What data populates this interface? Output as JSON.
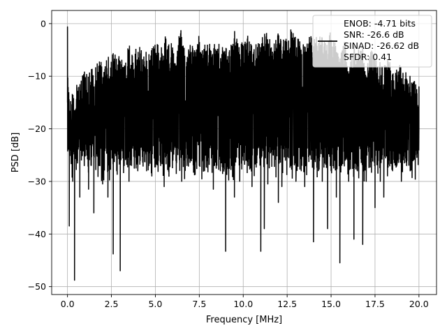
{
  "chart_data": {
    "type": "line",
    "xlabel": "Frequency [MHz]",
    "ylabel": "PSD [dB]",
    "xlim": [
      -0.9,
      21.0
    ],
    "ylim": [
      -51.5,
      2.5
    ],
    "x_ticks": [
      0.0,
      2.5,
      5.0,
      7.5,
      10.0,
      12.5,
      15.0,
      17.5,
      20.0
    ],
    "x_tick_labels": [
      "0.0",
      "2.5",
      "5.0",
      "7.5",
      "10.0",
      "12.5",
      "15.0",
      "17.5",
      "20.0"
    ],
    "y_ticks": [
      0,
      -10,
      -20,
      -30,
      -40,
      -50
    ],
    "y_tick_labels": [
      "0",
      "−10",
      "−20",
      "−30",
      "−40",
      "−50"
    ],
    "grid": true,
    "legend_position": "top-right",
    "series": [
      {
        "name": "ENOB: -4.71 bits\nSNR: -26.6 dB\nSINAD: -26.62 dB\nSFDR: 0.41",
        "legend_lines": [
          "ENOB: -4.71 bits",
          "SNR: -26.6 dB",
          "SINAD: -26.62 dB",
          "SFDR: 0.41"
        ],
        "color": "#000000",
        "x": [
          0.0,
          0.1,
          0.2,
          0.3,
          0.4,
          0.5,
          0.7,
          1.0,
          1.2,
          1.5,
          1.8,
          2.0,
          2.3,
          2.5,
          2.6,
          2.8,
          3.0,
          3.2,
          3.5,
          3.8,
          4.0,
          4.3,
          4.5,
          4.8,
          5.0,
          5.3,
          5.5,
          5.8,
          6.0,
          6.2,
          6.5,
          6.8,
          7.0,
          7.3,
          7.5,
          7.8,
          8.0,
          8.3,
          8.5,
          8.7,
          9.0,
          9.2,
          9.5,
          9.8,
          10.0,
          10.3,
          10.5,
          10.8,
          11.0,
          11.2,
          11.4,
          11.7,
          12.0,
          12.2,
          12.4,
          12.7,
          13.0,
          13.3,
          13.5,
          13.8,
          14.0,
          14.3,
          14.5,
          14.8,
          15.0,
          15.3,
          15.5,
          15.8,
          16.0,
          16.3,
          16.5,
          16.8,
          17.0,
          17.3,
          17.5,
          17.8,
          18.0,
          18.3,
          18.5,
          18.8,
          19.0,
          19.3,
          19.5,
          19.8,
          20.0
        ],
        "y": [
          -0.6,
          -38.5,
          -22.0,
          -30.0,
          -48.8,
          -18.0,
          -33.0,
          -25.0,
          -31.5,
          -36.0,
          -27.0,
          -30.5,
          -33.0,
          -24.0,
          -43.8,
          -28.0,
          -47.0,
          -26.0,
          -30.0,
          -27.5,
          -28.0,
          -26.0,
          -28.0,
          -29.0,
          -25.0,
          -27.0,
          -31.0,
          -24.0,
          -26.0,
          -25.0,
          -30.0,
          -27.0,
          -24.0,
          -26.0,
          -27.0,
          -28.0,
          -25.0,
          -31.5,
          -26.0,
          -28.0,
          -43.3,
          -27.0,
          -33.0,
          -30.0,
          -26.0,
          -27.0,
          -31.0,
          -25.0,
          -43.3,
          -39.0,
          -30.5,
          -25.0,
          -34.0,
          -31.0,
          -26.0,
          -27.0,
          -30.0,
          -28.0,
          -31.0,
          -25.0,
          -41.5,
          -27.0,
          -30.0,
          -39.0,
          -28.0,
          -33.0,
          -45.5,
          -26.0,
          -30.0,
          -41.0,
          -28.0,
          -42.0,
          -30.0,
          -26.0,
          -35.0,
          -30.0,
          -33.0,
          -26.0,
          -28.0,
          -26.0,
          -30.0,
          -27.0,
          -28.0,
          -25.0,
          -12.0
        ],
        "upper_envelope": [
          -5.0,
          -15.0,
          -14.0,
          -13.0,
          -13.0,
          -11.0,
          -10.0,
          -9.0,
          -8.0,
          -8.5,
          -7.0,
          -7.5,
          -6.0,
          -7.0,
          -5.0,
          -6.0,
          -6.0,
          -7.0,
          -4.0,
          -6.0,
          -3.0,
          -6.0,
          -4.0,
          -4.0,
          -3.0,
          -5.0,
          -2.0,
          -4.0,
          -3.0,
          -4.0,
          -0.5,
          -4.0,
          -3.0,
          -4.0,
          -2.0,
          -4.0,
          -3.0,
          -4.0,
          -2.0,
          -5.0,
          -3.0,
          -5.0,
          -1.0,
          -4.0,
          -3.0,
          -2.0,
          -2.5,
          -4.0,
          -3.0,
          -0.5,
          -2.0,
          -4.0,
          -1.0,
          -3.0,
          -2.0,
          -1.0,
          -2.0,
          -3.0,
          -4.0,
          -2.0,
          -3.0,
          -2.0,
          -2.5,
          -3.0,
          -1.0,
          -4.0,
          -6.0,
          -3.0,
          -7.0,
          -4.0,
          -5.0,
          -4.0,
          -7.0,
          -5.0,
          -6.0,
          -7.0,
          -8.0,
          -6.0,
          -9.0,
          -7.0,
          -8.0,
          -9.0,
          -9.0,
          -10.0,
          -16.0
        ]
      }
    ]
  }
}
